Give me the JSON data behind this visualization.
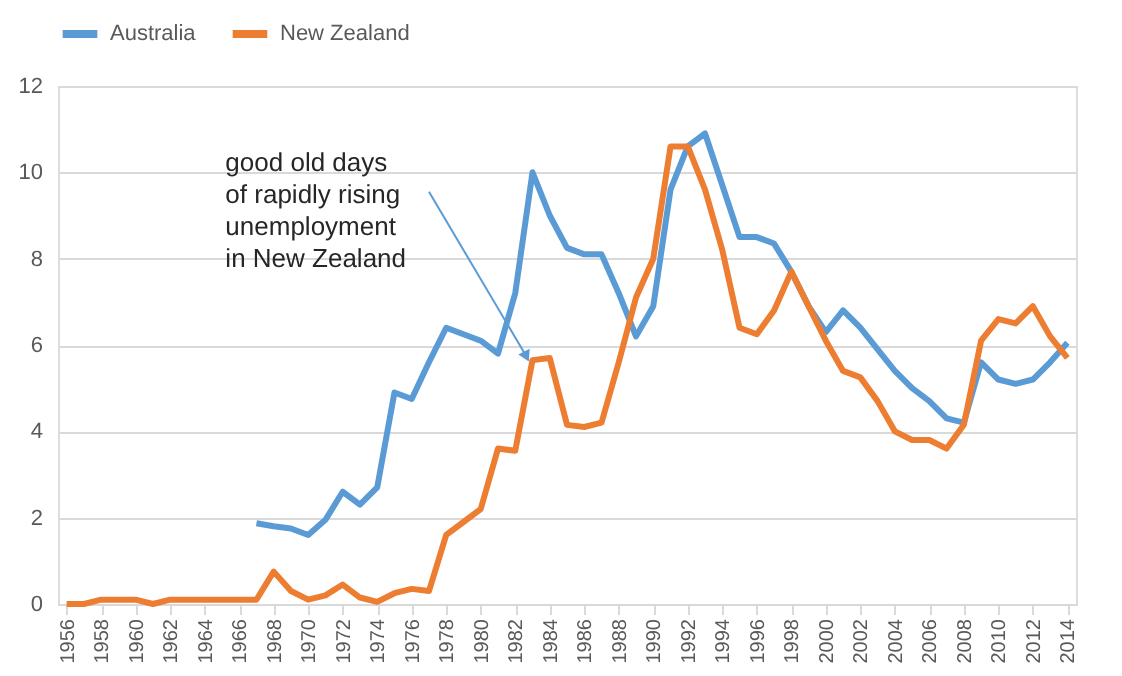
{
  "chart_data": {
    "type": "line",
    "x": [
      1956,
      1957,
      1958,
      1959,
      1960,
      1961,
      1962,
      1963,
      1964,
      1965,
      1966,
      1967,
      1968,
      1969,
      1970,
      1971,
      1972,
      1973,
      1974,
      1975,
      1976,
      1977,
      1978,
      1979,
      1980,
      1981,
      1982,
      1983,
      1984,
      1985,
      1986,
      1987,
      1988,
      1989,
      1990,
      1991,
      1992,
      1993,
      1994,
      1995,
      1996,
      1997,
      1998,
      1999,
      2000,
      2001,
      2002,
      2003,
      2004,
      2005,
      2006,
      2007,
      2008,
      2009,
      2010,
      2011,
      2012,
      2013,
      2014
    ],
    "series": [
      {
        "name": "Australia",
        "color": "#5b9bd5",
        "values": [
          null,
          null,
          null,
          null,
          null,
          null,
          null,
          null,
          null,
          null,
          null,
          1.87,
          1.8,
          1.75,
          1.6,
          1.95,
          2.6,
          2.3,
          2.7,
          4.9,
          4.75,
          5.6,
          6.4,
          6.25,
          6.1,
          5.8,
          7.2,
          10.0,
          9.0,
          8.25,
          8.1,
          8.1,
          7.2,
          6.2,
          6.9,
          9.6,
          10.6,
          10.9,
          9.7,
          8.5,
          8.5,
          8.35,
          7.7,
          6.9,
          6.3,
          6.8,
          6.4,
          5.9,
          5.4,
          5.0,
          4.7,
          4.3,
          4.2,
          5.6,
          5.2,
          5.1,
          5.2,
          5.6,
          6.05
        ]
      },
      {
        "name": "New Zealand",
        "color": "#ed7d31",
        "values": [
          0,
          0,
          0.1,
          0.1,
          0.1,
          0,
          0.1,
          0.1,
          0.1,
          0.1,
          0.1,
          0.1,
          0.75,
          0.3,
          0.1,
          0.2,
          0.45,
          0.15,
          0.05,
          0.25,
          0.35,
          0.3,
          1.6,
          1.9,
          2.2,
          3.6,
          3.55,
          5.65,
          5.7,
          4.15,
          4.1,
          4.2,
          5.6,
          7.1,
          8.0,
          10.6,
          10.6,
          9.6,
          8.2,
          6.4,
          6.25,
          6.8,
          7.7,
          6.9,
          6.1,
          5.4,
          5.25,
          4.7,
          4.0,
          3.8,
          3.8,
          3.6,
          4.15,
          6.1,
          6.6,
          6.5,
          6.9,
          6.2,
          5.7
        ]
      }
    ],
    "xlim": [
      1955.5,
      2014.5
    ],
    "xticks": [
      1956,
      1958,
      1960,
      1962,
      1964,
      1966,
      1968,
      1970,
      1972,
      1974,
      1976,
      1978,
      1980,
      1982,
      1984,
      1986,
      1988,
      1990,
      1992,
      1994,
      1996,
      1998,
      2000,
      2002,
      2004,
      2006,
      2008,
      2010,
      2012,
      2014
    ],
    "ylim": [
      0,
      12
    ],
    "yticks": [
      0,
      2,
      4,
      6,
      8,
      10,
      12
    ],
    "grid": "y",
    "legend": "top",
    "marker": "none",
    "line_style": "solid",
    "annotations": [
      {
        "text": "good old days\nof rapidly rising\nunemployment\nin New Zealand",
        "x": 1983,
        "y": 5.65
      }
    ]
  }
}
